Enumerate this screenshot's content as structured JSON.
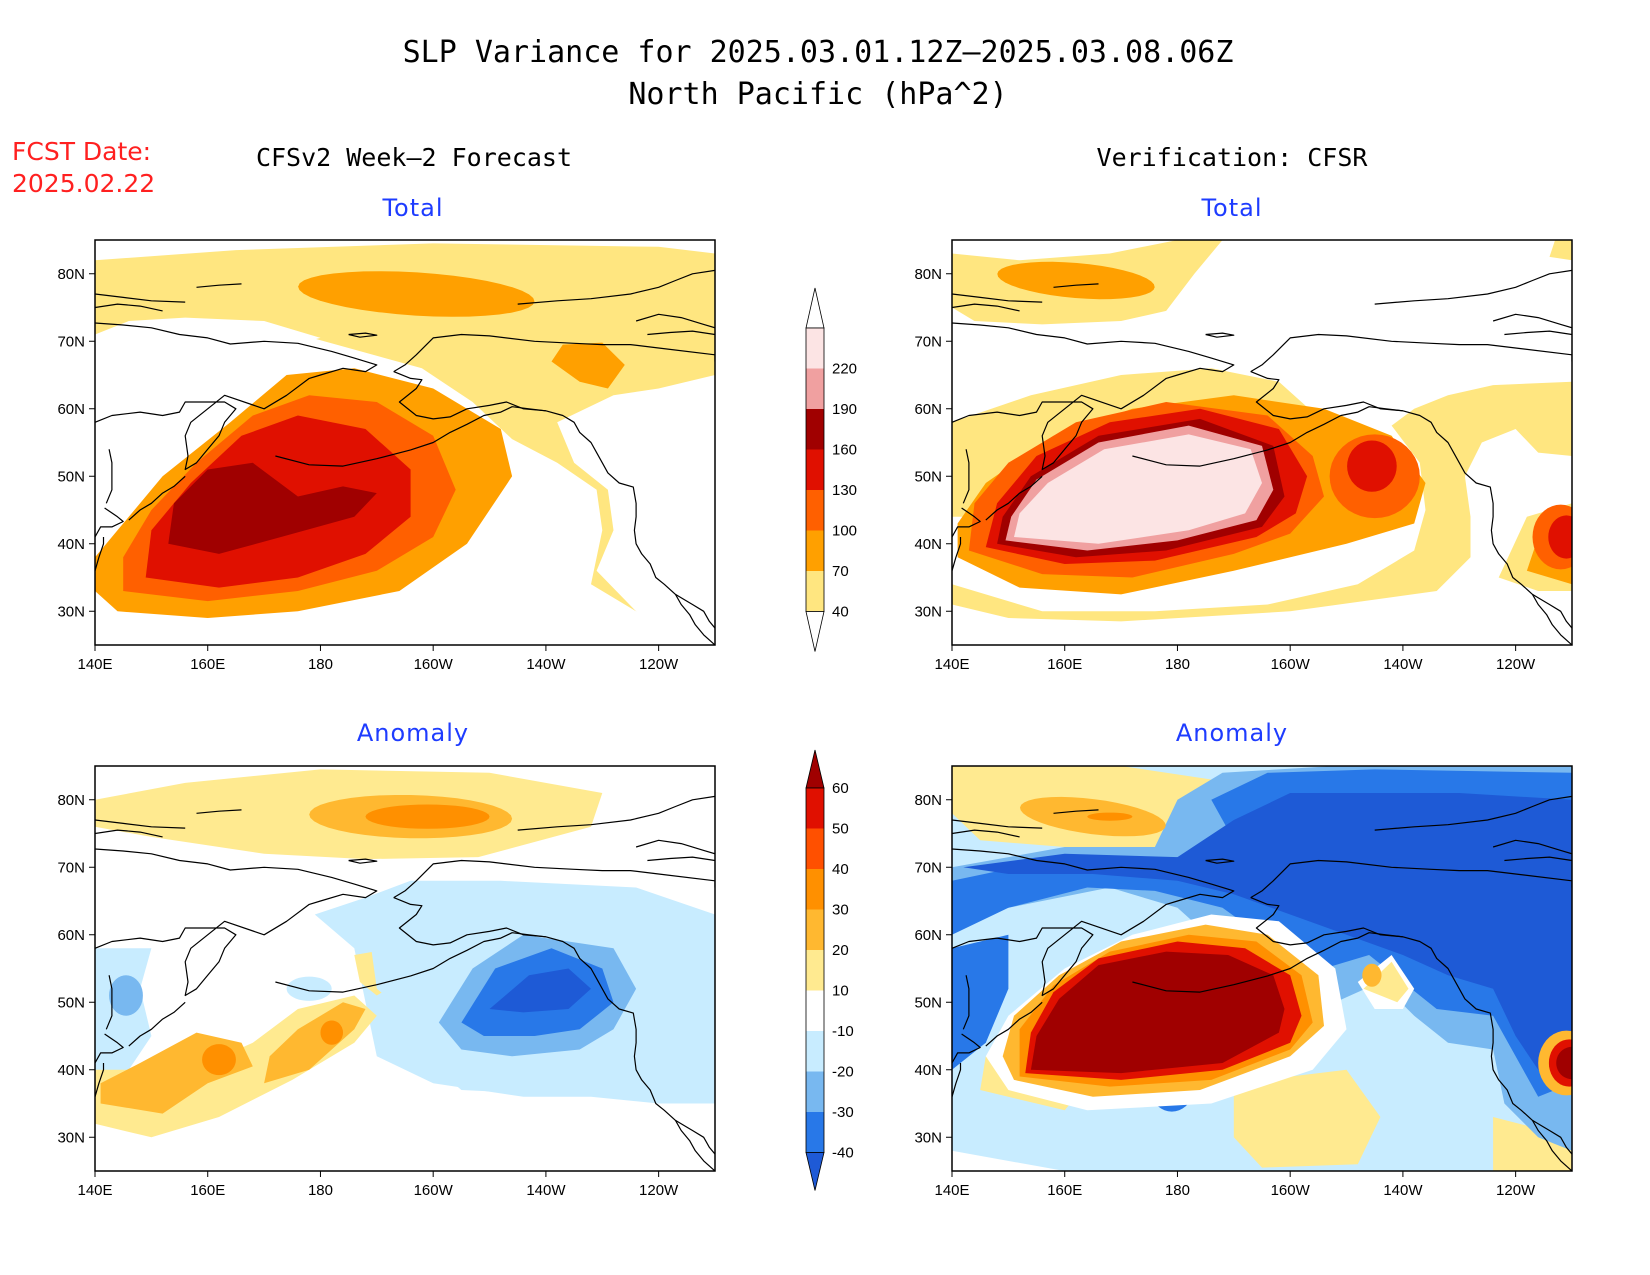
{
  "title": {
    "line1": "SLP Variance for 2025.03.01.12Z–2025.03.08.06Z",
    "line2": "North Pacific (hPa^2)"
  },
  "fcst": {
    "label": "FCST Date:",
    "date": "2025.02.22"
  },
  "columns": {
    "left": "CFSv2 Week–2 Forecast",
    "right": "Verification: CFSR"
  },
  "rows": {
    "top": "Total",
    "bottom": "Anomaly"
  },
  "axes": {
    "x_ticks": [
      "140E",
      "160E",
      "180",
      "160W",
      "140W",
      "120W"
    ],
    "y_ticks": [
      "80N",
      "70N",
      "60N",
      "50N",
      "40N",
      "30N"
    ]
  },
  "colorbars": {
    "total": {
      "labels": [
        "40",
        "70",
        "100",
        "130",
        "160",
        "190",
        "220"
      ],
      "colors": [
        "#ffe680",
        "#ffa000",
        "#ff6000",
        "#e01000",
        "#a00000",
        "#f0a0a0",
        "#fce4e4"
      ]
    },
    "anomaly": {
      "labels": [
        "-40",
        "-30",
        "-20",
        "-10",
        "10",
        "20",
        "30",
        "40",
        "50",
        "60"
      ],
      "colors": [
        "#1e5ad6",
        "#2878e8",
        "#78b8f0",
        "#c8ecff",
        "#ffffff",
        "#ffea90",
        "#ffb830",
        "#ff9000",
        "#ff5000",
        "#e01000",
        "#a00000"
      ]
    }
  },
  "chart_data": [
    {
      "type": "heatmap",
      "title": "Total",
      "panel": "CFSv2 Week–2 Forecast",
      "fields": [
        {
          "lon": 200,
          "lat": 77,
          "value": 75
        },
        {
          "lon": 172,
          "lat": 45,
          "value": 165
        },
        {
          "lon": 180,
          "lat": 50,
          "value": 140
        },
        {
          "lon": 225,
          "lat": 68,
          "value": 75
        }
      ]
    },
    {
      "type": "heatmap",
      "title": "Total",
      "panel": "Verification: CFSR",
      "fields": [
        {
          "lon": 178,
          "lat": 48,
          "value": 225
        },
        {
          "lon": 215,
          "lat": 50,
          "value": 140
        },
        {
          "lon": 248,
          "lat": 41,
          "value": 145
        },
        {
          "lon": 170,
          "lat": 79,
          "value": 75
        }
      ]
    },
    {
      "type": "heatmap",
      "title": "Anomaly",
      "panel": "CFSv2 Week–2 Forecast",
      "fields": [
        {
          "lon": 195,
          "lat": 77,
          "value": 25
        },
        {
          "lon": 160,
          "lat": 41,
          "value": 35
        },
        {
          "lon": 180,
          "lat": 44,
          "value": 30
        },
        {
          "lon": 220,
          "lat": 50,
          "value": -40
        },
        {
          "lon": 145,
          "lat": 47,
          "value": -20
        }
      ]
    },
    {
      "type": "heatmap",
      "title": "Anomaly",
      "panel": "Verification: CFSR",
      "fields": [
        {
          "lon": 178,
          "lat": 47,
          "value": 65
        },
        {
          "lon": 248,
          "lat": 41,
          "value": 60
        },
        {
          "lon": 215,
          "lat": 70,
          "value": -45
        },
        {
          "lon": 165,
          "lat": 76,
          "value": 30
        },
        {
          "lon": 176,
          "lat": 38,
          "value": -35
        }
      ]
    }
  ]
}
